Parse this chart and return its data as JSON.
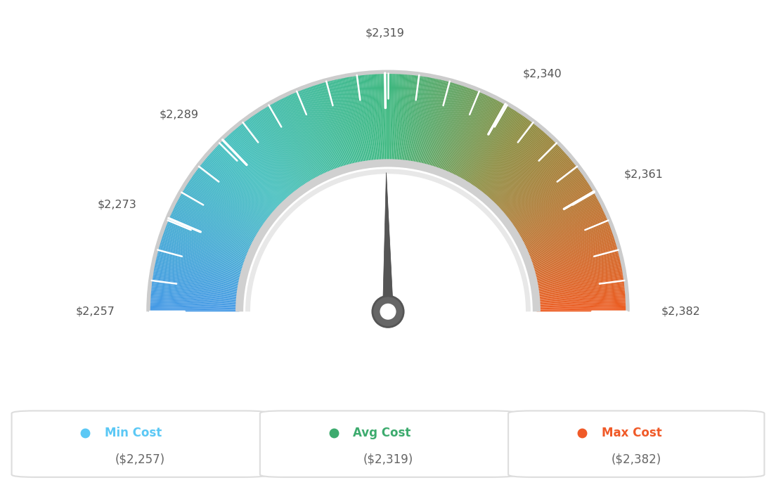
{
  "min_val": 2257,
  "avg_val": 2319,
  "max_val": 2382,
  "tick_labels": [
    "$2,257",
    "$2,273",
    "$2,289",
    "$2,319",
    "$2,340",
    "$2,361",
    "$2,382"
  ],
  "tick_values": [
    2257,
    2273,
    2289,
    2319,
    2340,
    2361,
    2382
  ],
  "n_minor_ticks": 20,
  "legend_labels": [
    "Min Cost",
    "Avg Cost",
    "Max Cost"
  ],
  "legend_values": [
    "($2,257)",
    "($2,319)",
    "($2,382)"
  ],
  "legend_colors": [
    "#5bc8f5",
    "#3dab6e",
    "#f05a28"
  ],
  "background_color": "#ffffff",
  "outer_r": 1.0,
  "inner_r": 0.62,
  "color_stops": [
    [
      0.0,
      [
        0.27,
        0.6,
        0.9
      ]
    ],
    [
      0.25,
      [
        0.27,
        0.75,
        0.75
      ]
    ],
    [
      0.5,
      [
        0.24,
        0.72,
        0.5
      ]
    ],
    [
      0.7,
      [
        0.55,
        0.55,
        0.25
      ]
    ],
    [
      1.0,
      [
        0.93,
        0.36,
        0.13
      ]
    ]
  ],
  "needle_color": "#555555",
  "needle_circle_color": "#666666",
  "border_outer_color": "#cccccc",
  "border_inner_color": "#bbbbbb",
  "inner_fill_color": "#ffffff",
  "tick_color": "#ffffff",
  "label_color": "#555555"
}
